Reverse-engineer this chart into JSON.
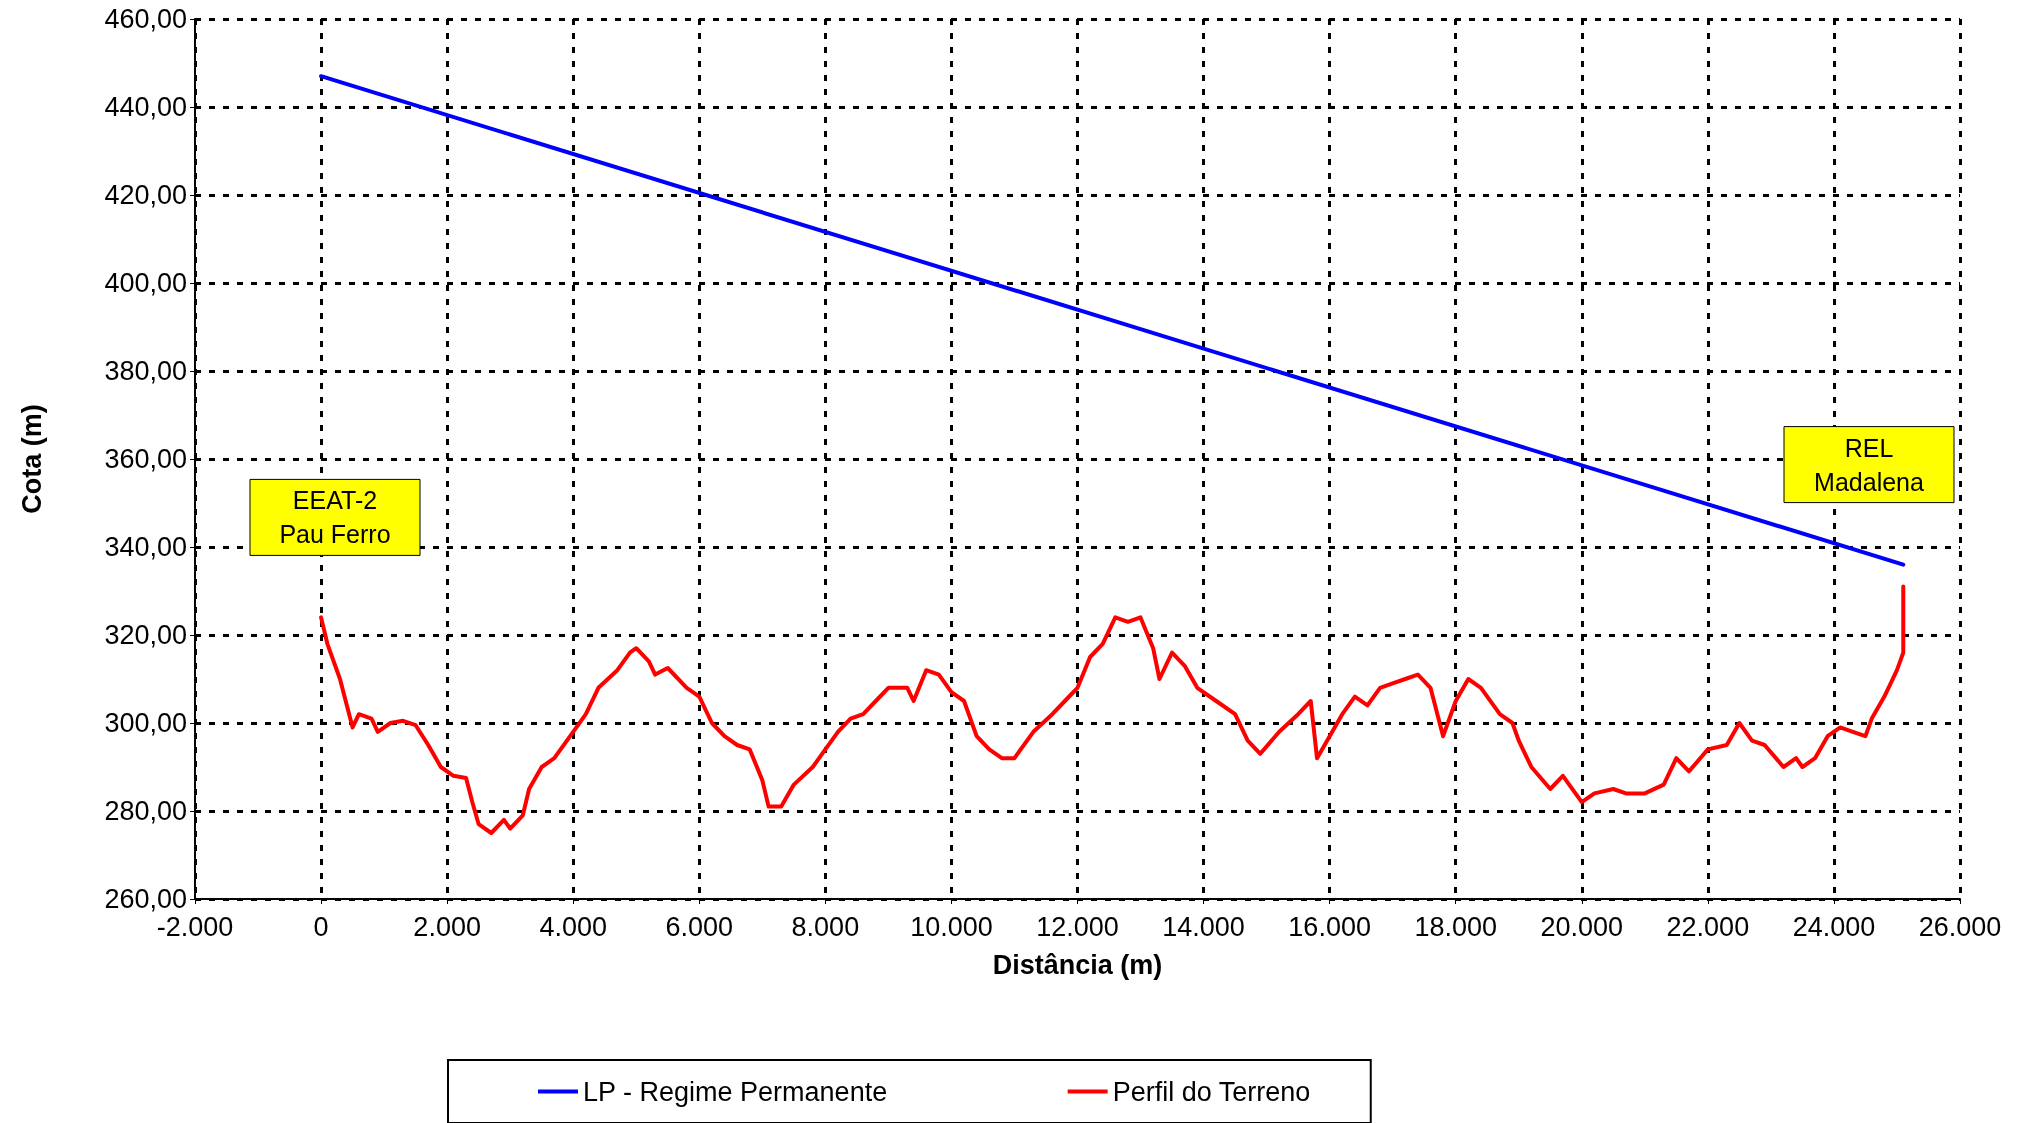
{
  "chart_data": {
    "type": "line",
    "xlabel": "Distância (m)",
    "ylabel": "Cota (m)",
    "xlim": [
      -2000,
      26000
    ],
    "ylim": [
      260,
      460
    ],
    "xticks": [
      {
        "value": -2000,
        "label": "-2.000"
      },
      {
        "value": 0,
        "label": "0"
      },
      {
        "value": 2000,
        "label": "2.000"
      },
      {
        "value": 4000,
        "label": "4.000"
      },
      {
        "value": 6000,
        "label": "6.000"
      },
      {
        "value": 8000,
        "label": "8.000"
      },
      {
        "value": 10000,
        "label": "10.000"
      },
      {
        "value": 12000,
        "label": "12.000"
      },
      {
        "value": 14000,
        "label": "14.000"
      },
      {
        "value": 16000,
        "label": "16.000"
      },
      {
        "value": 18000,
        "label": "18.000"
      },
      {
        "value": 20000,
        "label": "20.000"
      },
      {
        "value": 22000,
        "label": "22.000"
      },
      {
        "value": 24000,
        "label": "24.000"
      },
      {
        "value": 26000,
        "label": "26.000"
      }
    ],
    "yticks": [
      {
        "value": 260,
        "label": "260,00"
      },
      {
        "value": 280,
        "label": "280,00"
      },
      {
        "value": 300,
        "label": "300,00"
      },
      {
        "value": 320,
        "label": "320,00"
      },
      {
        "value": 340,
        "label": "340,00"
      },
      {
        "value": 360,
        "label": "360,00"
      },
      {
        "value": 380,
        "label": "380,00"
      },
      {
        "value": 400,
        "label": "400,00"
      },
      {
        "value": 420,
        "label": "420,00"
      },
      {
        "value": 440,
        "label": "440,00"
      },
      {
        "value": 460,
        "label": "460,00"
      }
    ],
    "grid": true,
    "legend": "bottom",
    "marker": "none",
    "line_style": "solid",
    "annotations": [
      {
        "text": "EEAT-2\nPau Ferro",
        "x": 0,
        "y": 324
      },
      {
        "text": "REL\nMadalena",
        "x": 25100,
        "y": 336
      }
    ],
    "series": [
      {
        "name": "LP - Regime Permanente",
        "color": "#0000ff",
        "x": [
          0,
          25100
        ],
        "values": [
          447,
          336
        ]
      },
      {
        "name": "Perfil do Terreno",
        "color": "#ff0000",
        "x": [
          0,
          100,
          300,
          500,
          600,
          800,
          900,
          1100,
          1300,
          1500,
          1700,
          1900,
          2100,
          2300,
          2400,
          2500,
          2700,
          2900,
          3000,
          3200,
          3300,
          3500,
          3700,
          4000,
          4200,
          4400,
          4700,
          4900,
          5000,
          5200,
          5300,
          5500,
          5800,
          6000,
          6200,
          6400,
          6600,
          6800,
          7000,
          7100,
          7300,
          7500,
          7800,
          8000,
          8200,
          8400,
          8600,
          8800,
          9000,
          9300,
          9400,
          9600,
          9800,
          10000,
          10200,
          10400,
          10600,
          10800,
          11000,
          11300,
          11600,
          11800,
          12000,
          12200,
          12400,
          12600,
          12800,
          13000,
          13200,
          13300,
          13500,
          13700,
          13900,
          14200,
          14500,
          14700,
          14900,
          15200,
          15500,
          15700,
          15800,
          16000,
          16200,
          16400,
          16600,
          16800,
          17000,
          17200,
          17400,
          17600,
          17800,
          18000,
          18200,
          18400,
          18700,
          18900,
          19000,
          19200,
          19500,
          19700,
          20000,
          20200,
          20500,
          20700,
          21000,
          21300,
          21500,
          21700,
          22000,
          22300,
          22500,
          22700,
          22900,
          23200,
          23400,
          23500,
          23700,
          23900,
          24100,
          24300,
          24500,
          24600,
          24800,
          25000,
          25100,
          25100
        ],
        "values": [
          324,
          318,
          310,
          299,
          302,
          301,
          298,
          300,
          300.5,
          299.5,
          295,
          290,
          288,
          287.5,
          282,
          277,
          275,
          278,
          276,
          279,
          285,
          290,
          292,
          298,
          302,
          308,
          312,
          316,
          317,
          314,
          311,
          312.5,
          308,
          306,
          300,
          297,
          295,
          294,
          287,
          281,
          281,
          286,
          290,
          294,
          298,
          301,
          302,
          305,
          308,
          308,
          305,
          312,
          311,
          307,
          305,
          297,
          294,
          292,
          292,
          298,
          302,
          305,
          308,
          315,
          318,
          324,
          323,
          324,
          317,
          310,
          316,
          313,
          308,
          305,
          302,
          296,
          293,
          298,
          302,
          305,
          292,
          297,
          302,
          306,
          304,
          308,
          309,
          310,
          311,
          308,
          297,
          305,
          310,
          308,
          302,
          300,
          296,
          290,
          285,
          288,
          282,
          284,
          285,
          284,
          284,
          286,
          292,
          289,
          294,
          295,
          300,
          296,
          295,
          290,
          292,
          290,
          292,
          297,
          299,
          298,
          297,
          301,
          306,
          312,
          316,
          331
        ]
      }
    ]
  }
}
